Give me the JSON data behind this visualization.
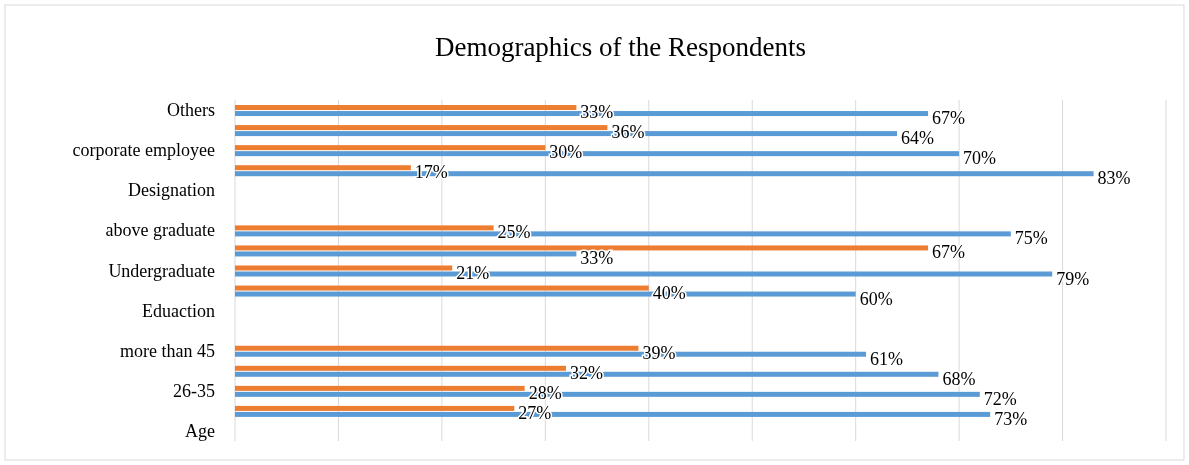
{
  "chart_data": {
    "type": "bar",
    "orientation": "horizontal",
    "title": "Demographics of the Respondents",
    "categories": [
      "Others",
      null,
      "corporate employee",
      null,
      "Designation",
      null,
      "above graduate",
      null,
      "Undergraduate",
      null,
      "Eduaction",
      null,
      "more than 45",
      null,
      "26-35",
      null,
      "Age"
    ],
    "series": [
      {
        "color": "#ed7d31",
        "values": [
          33,
          36,
          30,
          17,
          null,
          null,
          25,
          67,
          21,
          40,
          null,
          null,
          39,
          32,
          28,
          27,
          null
        ],
        "value_labels": [
          "33%",
          "36%",
          "30%",
          "17%",
          null,
          null,
          "25%",
          "67%",
          "21%",
          "40%",
          null,
          null,
          "39%",
          "32%",
          "28%",
          "27%",
          null
        ]
      },
      {
        "color": "#5b9bd5",
        "values": [
          67,
          64,
          70,
          83,
          null,
          null,
          75,
          33,
          79,
          60,
          null,
          null,
          61,
          68,
          72,
          73,
          null
        ],
        "value_labels": [
          "67%",
          "64%",
          "70%",
          "83%",
          null,
          null,
          "75%",
          "33%",
          "79%",
          "60%",
          null,
          null,
          "61%",
          "68%",
          "72%",
          "73%",
          null
        ]
      }
    ],
    "xlim": [
      0,
      90
    ],
    "xticks": [
      {
        "value": 0,
        "label": null
      },
      {
        "value": 10,
        "label": null
      },
      {
        "value": 20,
        "label": null
      },
      {
        "value": 30,
        "label": null
      },
      {
        "value": 40,
        "label": null
      },
      {
        "value": 50,
        "label": null
      },
      {
        "value": 60,
        "label": null
      },
      {
        "value": 70,
        "label": null
      },
      {
        "value": 80,
        "label": null
      },
      {
        "value": 90,
        "label": null
      }
    ],
    "tick_labels": "y",
    "grid": "x"
  }
}
